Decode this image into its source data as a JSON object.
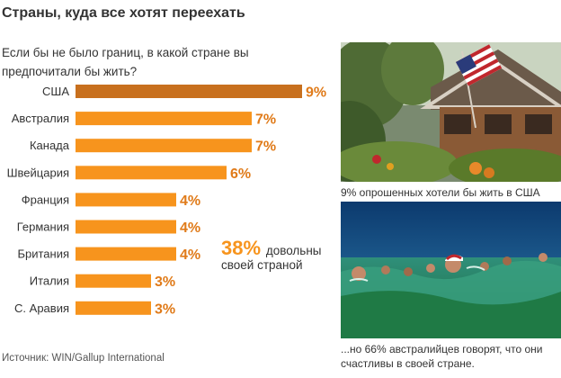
{
  "title": "Страны, куда все хотят переехать",
  "question": "Если бы не было границ, в какой стране вы предпочитали бы жить?",
  "highlight": {
    "value": "38%",
    "text": "довольны своей страной"
  },
  "source": "Источник: WIN/Gallup International",
  "photos": [
    {
      "caption": "9% опрошенных хотели бы жить в США"
    },
    {
      "caption": "...но 66% австралийцев говорят, что они счастливы в своей стране."
    }
  ],
  "colors": {
    "highlight_bar": "#c8701e",
    "bar": "#f7941d",
    "value_text": "#e07b1a"
  },
  "chart_data": {
    "type": "bar",
    "orientation": "horizontal",
    "categories": [
      "США",
      "Австралия",
      "Канада",
      "Швейцария",
      "Франция",
      "Германия",
      "Британия",
      "Италия",
      "С. Аравия"
    ],
    "values": [
      9,
      7,
      7,
      6,
      4,
      4,
      4,
      3,
      3
    ],
    "value_labels": [
      "9%",
      "7%",
      "7%",
      "6%",
      "4%",
      "4%",
      "4%",
      "3%",
      "3%"
    ],
    "unit": "%",
    "highlight_index": 0,
    "xlim": [
      0,
      9
    ],
    "grid": false,
    "legend": "none"
  }
}
